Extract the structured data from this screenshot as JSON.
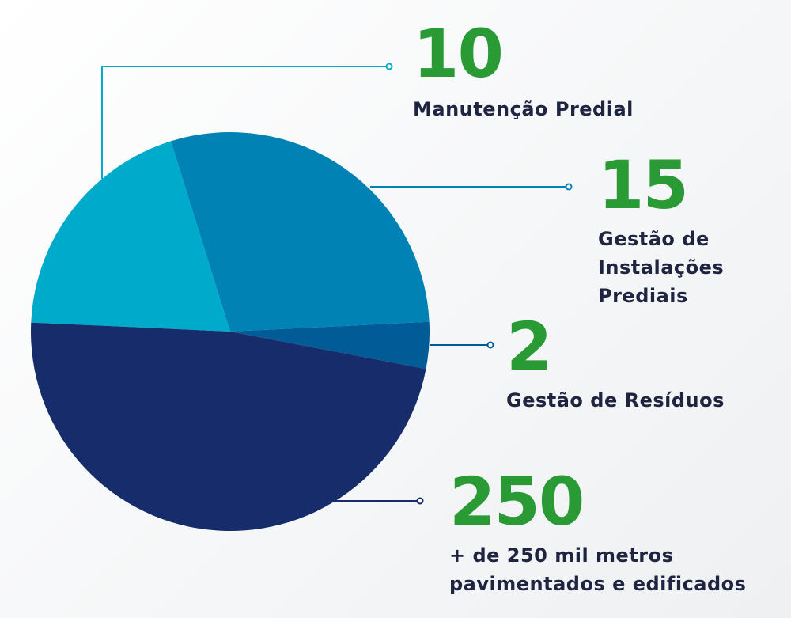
{
  "chart_data": {
    "type": "pie",
    "slices": [
      {
        "value": 10,
        "label": "Manutenção Predial",
        "lines": [
          "Manutenção Predial"
        ],
        "color": "#00aacb"
      },
      {
        "value": 15,
        "label": "Gestão de Instalações Prediais",
        "lines": [
          "Gestão de",
          "Instalações",
          "Prediais"
        ],
        "color": "#0082b4"
      },
      {
        "value": 2,
        "label": "Gestão de Resíduos",
        "lines": [
          "Gestão de Resíduos"
        ],
        "color": "#005b97"
      },
      {
        "value": 250,
        "label": "+ de 250 mil metros pavimentados e edificados",
        "lines": [
          "+ de 250 mil metros",
          "pavimentados e edificados"
        ],
        "color": "#162c6b"
      }
    ],
    "value_color": "#2a9a35",
    "label_color": "#1f2440",
    "connector_colors": [
      "#00aacb",
      "#0082b4",
      "#005b97",
      "#162c6b"
    ]
  }
}
